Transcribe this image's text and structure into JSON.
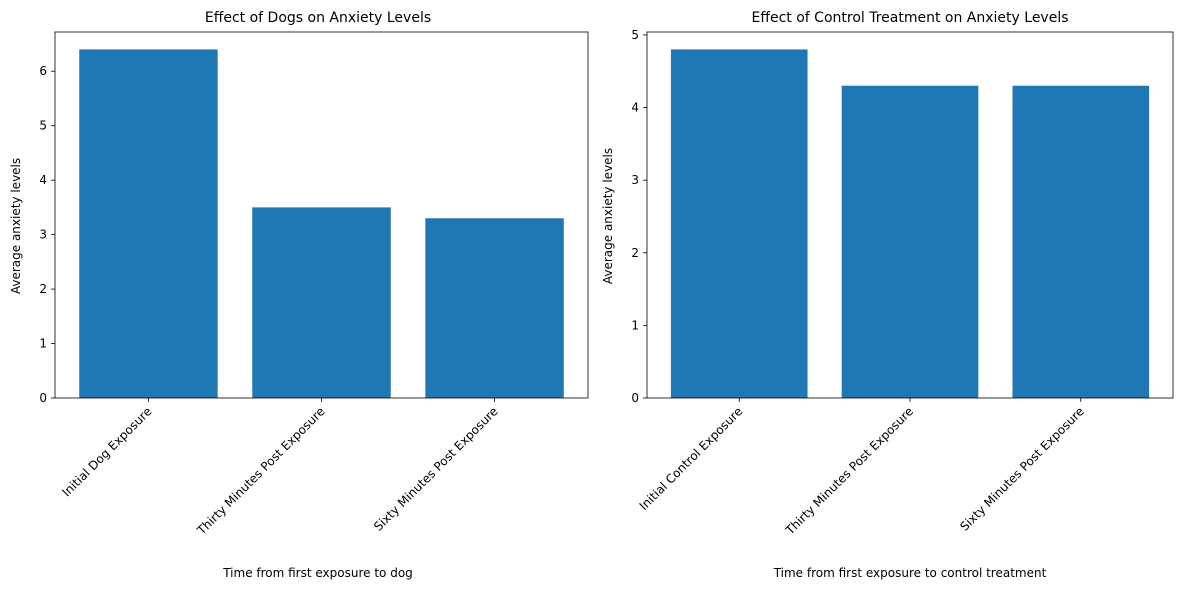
{
  "chart_data": [
    {
      "type": "bar",
      "title": "Effect of Dogs on Anxiety Levels",
      "xlabel": "Time from first exposure to dog",
      "ylabel": "Average anxiety levels",
      "categories": [
        "Initial Dog Exposure",
        "Thirty Minutes Post Exposure",
        "Sixty Minutes Post Exposure"
      ],
      "values": [
        6.4,
        3.5,
        3.3
      ],
      "ylim": [
        0,
        6.72
      ],
      "yticks": [
        0,
        1,
        2,
        3,
        4,
        5,
        6
      ],
      "bar_color": "#1f77b4",
      "grid": false,
      "legend": "none"
    },
    {
      "type": "bar",
      "title": "Effect of Control Treatment on Anxiety Levels",
      "xlabel": "Time from first exposure to control treatment",
      "ylabel": "Average anxiety levels",
      "categories": [
        "Initial Control Exposure",
        "Thirty Minutes Post Exposure",
        "Sixty Minutes Post Exposure"
      ],
      "values": [
        4.8,
        4.3,
        4.3
      ],
      "ylim": [
        0,
        5.04
      ],
      "yticks": [
        0,
        1,
        2,
        3,
        4,
        5
      ],
      "bar_color": "#1f77b4",
      "grid": false,
      "legend": "none"
    }
  ]
}
